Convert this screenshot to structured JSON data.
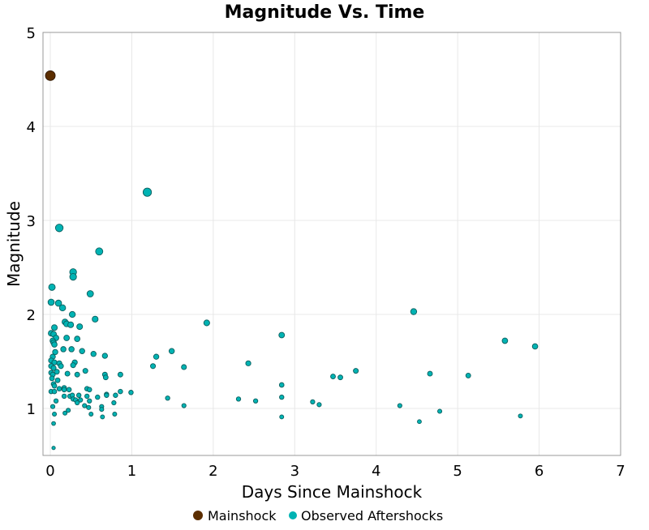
{
  "chart_data": {
    "type": "scatter",
    "title": "Magnitude Vs. Time",
    "xlabel": "Days Since Mainshock",
    "ylabel": "Magnitude",
    "xlim": [
      -0.09,
      7
    ],
    "ylim": [
      0.5,
      5
    ],
    "xticks": [
      "0",
      "1",
      "2",
      "3",
      "4",
      "5",
      "6",
      "7"
    ],
    "yticks": [
      "1",
      "2",
      "3",
      "4",
      "5"
    ],
    "grid": true,
    "legend_position": "bottom",
    "series": [
      {
        "name": "Mainshock",
        "color": "#5c2e00",
        "points": [
          [
            0,
            4.54
          ]
        ]
      },
      {
        "name": "Observed Aftershocks",
        "color": "#00b3b3",
        "points": [
          [
            0.11,
            2.92
          ],
          [
            0.6,
            2.67
          ],
          [
            0.28,
            2.45
          ],
          [
            0.28,
            2.4
          ],
          [
            0.02,
            2.29
          ],
          [
            0.49,
            2.22
          ],
          [
            0.01,
            2.13
          ],
          [
            0.1,
            2.12
          ],
          [
            0.15,
            2.07
          ],
          [
            0.27,
            2.0
          ],
          [
            0.55,
            1.95
          ],
          [
            0.18,
            1.92
          ],
          [
            0.2,
            1.9
          ],
          [
            0.25,
            1.89
          ],
          [
            0.36,
            1.87
          ],
          [
            0.05,
            1.86
          ],
          [
            0.01,
            1.8
          ],
          [
            0.04,
            1.79
          ],
          [
            0.07,
            1.75
          ],
          [
            0.2,
            1.75
          ],
          [
            0.33,
            1.74
          ],
          [
            0.03,
            1.72
          ],
          [
            0.04,
            1.7
          ],
          [
            0.05,
            1.68
          ],
          [
            0.16,
            1.63
          ],
          [
            0.26,
            1.63
          ],
          [
            0.39,
            1.61
          ],
          [
            0.06,
            1.6
          ],
          [
            0.53,
            1.58
          ],
          [
            0.67,
            1.56
          ],
          [
            1.49,
            1.61
          ],
          [
            1.3,
            1.55
          ],
          [
            1.26,
            1.45
          ],
          [
            1.64,
            1.44
          ],
          [
            0.03,
            1.55
          ],
          [
            0.01,
            1.51
          ],
          [
            0.05,
            1.49
          ],
          [
            0.11,
            1.48
          ],
          [
            0.3,
            1.49
          ],
          [
            0.28,
            1.46
          ],
          [
            0.13,
            1.45
          ],
          [
            0.01,
            1.45
          ],
          [
            0.04,
            1.43
          ],
          [
            0.08,
            1.39
          ],
          [
            0.01,
            1.38
          ],
          [
            0.21,
            1.37
          ],
          [
            0.33,
            1.36
          ],
          [
            0.43,
            1.4
          ],
          [
            0.67,
            1.36
          ],
          [
            0.68,
            1.33
          ],
          [
            0.86,
            1.36
          ],
          [
            0.03,
            1.36
          ],
          [
            0.02,
            1.32
          ],
          [
            0.09,
            1.3
          ],
          [
            0.04,
            1.26
          ],
          [
            0.05,
            1.24
          ],
          [
            0.01,
            1.18
          ],
          [
            0.05,
            1.18
          ],
          [
            0.11,
            1.21
          ],
          [
            0.17,
            1.22
          ],
          [
            0.17,
            1.2
          ],
          [
            0.23,
            1.2
          ],
          [
            0.45,
            1.21
          ],
          [
            0.48,
            1.2
          ],
          [
            0.86,
            1.18
          ],
          [
            0.99,
            1.17
          ],
          [
            0.69,
            1.15
          ],
          [
            0.69,
            1.14
          ],
          [
            0.8,
            1.14
          ],
          [
            0.35,
            1.14
          ],
          [
            0.45,
            1.13
          ],
          [
            0.58,
            1.12
          ],
          [
            0.17,
            1.13
          ],
          [
            0.24,
            1.13
          ],
          [
            0.27,
            1.14
          ],
          [
            0.28,
            1.1
          ],
          [
            0.31,
            1.09
          ],
          [
            0.37,
            1.09
          ],
          [
            0.48,
            1.08
          ],
          [
            0.33,
            1.06
          ],
          [
            0.78,
            1.06
          ],
          [
            0.07,
            1.08
          ],
          [
            0.42,
            1.03
          ],
          [
            0.47,
            1.01
          ],
          [
            0.63,
            1.02
          ],
          [
            0.63,
            0.99
          ],
          [
            1.44,
            1.11
          ],
          [
            1.64,
            1.03
          ],
          [
            0.03,
            1.02
          ],
          [
            0.05,
            0.94
          ],
          [
            0.18,
            0.95
          ],
          [
            0.22,
            0.98
          ],
          [
            0.5,
            0.94
          ],
          [
            0.64,
            0.91
          ],
          [
            0.79,
            0.94
          ],
          [
            0.04,
            0.84
          ],
          [
            0.04,
            0.58
          ],
          [
            1.19,
            3.3
          ],
          [
            1.92,
            1.91
          ],
          [
            2.43,
            1.48
          ],
          [
            2.31,
            1.1
          ],
          [
            2.52,
            1.08
          ],
          [
            2.84,
            1.78
          ],
          [
            2.84,
            1.25
          ],
          [
            2.84,
            1.12
          ],
          [
            2.84,
            0.91
          ],
          [
            3.22,
            1.07
          ],
          [
            3.3,
            1.04
          ],
          [
            3.47,
            1.34
          ],
          [
            3.56,
            1.33
          ],
          [
            3.75,
            1.4
          ],
          [
            4.29,
            1.03
          ],
          [
            4.46,
            2.03
          ],
          [
            4.53,
            0.86
          ],
          [
            4.66,
            1.37
          ],
          [
            4.78,
            0.97
          ],
          [
            5.13,
            1.35
          ],
          [
            5.58,
            1.72
          ],
          [
            5.77,
            0.92
          ],
          [
            5.95,
            1.66
          ]
        ]
      }
    ]
  }
}
